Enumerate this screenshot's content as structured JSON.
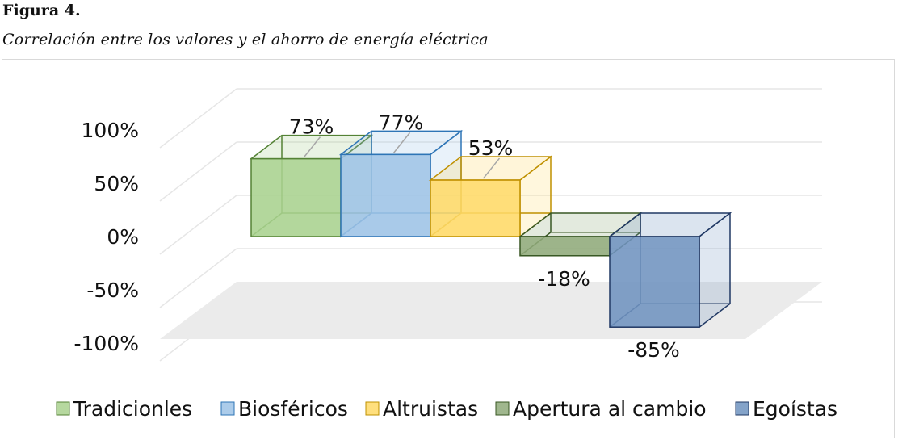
{
  "figure_label": "Figura 4.",
  "caption": "Correlación entre los valores y el ahorro de energía eléctrica",
  "chart_data": {
    "type": "bar",
    "style": "3d-column",
    "categories": [
      "Tradicionles",
      "Biosféricos",
      "Altruistas",
      "Apertura al cambio",
      "Egoístas"
    ],
    "values": [
      0.73,
      0.77,
      0.53,
      -0.18,
      -0.85
    ],
    "data_labels": [
      "73%",
      "77%",
      "53%",
      "-18%",
      "-85%"
    ],
    "y_ticks": [
      1.0,
      0.5,
      0.0,
      -0.5,
      -1.0
    ],
    "y_tick_labels": [
      "100%",
      "50%",
      "0%",
      "-50%",
      "-100%"
    ],
    "ylim": [
      -1.0,
      1.0
    ],
    "grid": true,
    "legend_position": "bottom",
    "series_colors": [
      "#a9d18e",
      "#9dc3e6",
      "#ffd966",
      "#8faa7a",
      "#6f93bf"
    ],
    "series_edges": [
      "#548235",
      "#2e75b6",
      "#bf9000",
      "#385723",
      "#203864"
    ]
  }
}
